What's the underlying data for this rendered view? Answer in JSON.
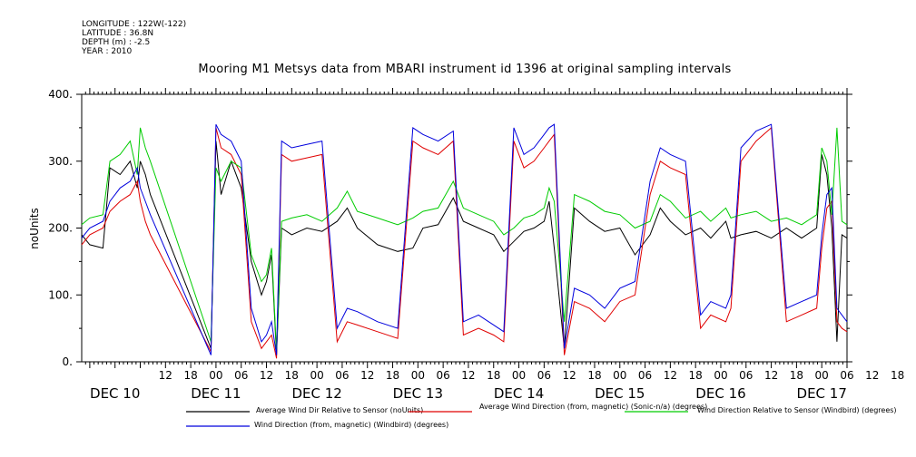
{
  "header": {
    "lines": [
      "LONGITUDE : 122W(-122)",
      "LATITUDE : 36.8N",
      "DEPTH (m) : -2.5",
      "YEAR : 2010"
    ]
  },
  "chart_data": {
    "type": "line",
    "title": "Mooring M1 Metsys data from MBARI instrument id 1396 at original sampling intervals",
    "ylabel": "noUnits",
    "xlabel": "",
    "ylim": [
      0,
      400
    ],
    "xlim": [
      -0.33,
      7.25
    ],
    "grid": false,
    "y_ticks": [
      "0.",
      "100.",
      "200.",
      "300.",
      "400."
    ],
    "hour_ticks": [
      "12",
      "18",
      "00",
      "06",
      "12",
      "18",
      "00",
      "06",
      "12",
      "18",
      "00",
      "06",
      "12",
      "18",
      "00",
      "06",
      "12",
      "18",
      "00",
      "06",
      "12",
      "18",
      "00",
      "06",
      "12",
      "18",
      "00",
      "06",
      "12",
      "18",
      "00",
      "06"
    ],
    "day_labels": [
      "DEC 10",
      "DEC 11",
      "DEC 12",
      "DEC 13",
      "DEC 14",
      "DEC 15",
      "DEC 16",
      "DEC 17"
    ],
    "x_unit_note": "days after 2010-12-10 00:00",
    "series": [
      {
        "name": "Average Wind Dir Relative to Sensor (noUnits)",
        "color": "#000000",
        "points": [
          [
            -0.33,
            190
          ],
          [
            -0.25,
            175
          ],
          [
            -0.12,
            170
          ],
          [
            -0.05,
            290
          ],
          [
            0.05,
            280
          ],
          [
            0.15,
            300
          ],
          [
            0.22,
            260
          ],
          [
            0.25,
            300
          ],
          [
            0.3,
            280
          ],
          [
            0.35,
            250
          ],
          [
            0.95,
            20
          ],
          [
            1.0,
            330
          ],
          [
            1.05,
            250
          ],
          [
            1.15,
            300
          ],
          [
            1.25,
            260
          ],
          [
            1.35,
            150
          ],
          [
            1.45,
            100
          ],
          [
            1.5,
            120
          ],
          [
            1.55,
            160
          ],
          [
            1.6,
            10
          ],
          [
            1.65,
            200
          ],
          [
            1.75,
            190
          ],
          [
            1.9,
            200
          ],
          [
            2.05,
            195
          ],
          [
            2.2,
            210
          ],
          [
            2.3,
            230
          ],
          [
            2.4,
            200
          ],
          [
            2.6,
            175
          ],
          [
            2.8,
            165
          ],
          [
            2.95,
            170
          ],
          [
            3.05,
            200
          ],
          [
            3.2,
            205
          ],
          [
            3.35,
            245
          ],
          [
            3.45,
            210
          ],
          [
            3.6,
            200
          ],
          [
            3.75,
            190
          ],
          [
            3.85,
            165
          ],
          [
            3.95,
            180
          ],
          [
            4.05,
            195
          ],
          [
            4.15,
            200
          ],
          [
            4.25,
            210
          ],
          [
            4.3,
            240
          ],
          [
            4.35,
            170
          ],
          [
            4.45,
            20
          ],
          [
            4.55,
            230
          ],
          [
            4.7,
            210
          ],
          [
            4.85,
            195
          ],
          [
            5.0,
            200
          ],
          [
            5.15,
            160
          ],
          [
            5.3,
            190
          ],
          [
            5.4,
            230
          ],
          [
            5.5,
            210
          ],
          [
            5.65,
            190
          ],
          [
            5.8,
            200
          ],
          [
            5.9,
            185
          ],
          [
            6.05,
            210
          ],
          [
            6.1,
            185
          ],
          [
            6.2,
            190
          ],
          [
            6.35,
            195
          ],
          [
            6.5,
            185
          ],
          [
            6.65,
            200
          ],
          [
            6.8,
            185
          ],
          [
            6.95,
            200
          ],
          [
            7.0,
            310
          ],
          [
            7.05,
            280
          ],
          [
            7.1,
            200
          ],
          [
            7.15,
            30
          ],
          [
            7.2,
            190
          ],
          [
            7.25,
            185
          ]
        ]
      },
      {
        "name": "Average Wind Direction (from, magnetic) (Sonic-n/a) (degrees)",
        "color": "#e00000",
        "points": [
          [
            -0.33,
            175
          ],
          [
            -0.25,
            190
          ],
          [
            -0.12,
            200
          ],
          [
            -0.05,
            225
          ],
          [
            0.05,
            240
          ],
          [
            0.15,
            250
          ],
          [
            0.22,
            270
          ],
          [
            0.25,
            240
          ],
          [
            0.3,
            210
          ],
          [
            0.35,
            190
          ],
          [
            0.95,
            15
          ],
          [
            1.0,
            350
          ],
          [
            1.05,
            320
          ],
          [
            1.15,
            310
          ],
          [
            1.25,
            280
          ],
          [
            1.35,
            60
          ],
          [
            1.45,
            20
          ],
          [
            1.5,
            30
          ],
          [
            1.55,
            40
          ],
          [
            1.6,
            5
          ],
          [
            1.65,
            310
          ],
          [
            1.75,
            300
          ],
          [
            1.9,
            305
          ],
          [
            2.05,
            310
          ],
          [
            2.2,
            30
          ],
          [
            2.3,
            60
          ],
          [
            2.4,
            55
          ],
          [
            2.6,
            45
          ],
          [
            2.8,
            35
          ],
          [
            2.95,
            330
          ],
          [
            3.05,
            320
          ],
          [
            3.2,
            310
          ],
          [
            3.35,
            330
          ],
          [
            3.45,
            40
          ],
          [
            3.6,
            50
          ],
          [
            3.75,
            40
          ],
          [
            3.85,
            30
          ],
          [
            3.95,
            330
          ],
          [
            4.05,
            290
          ],
          [
            4.15,
            300
          ],
          [
            4.25,
            320
          ],
          [
            4.3,
            330
          ],
          [
            4.35,
            340
          ],
          [
            4.45,
            10
          ],
          [
            4.55,
            90
          ],
          [
            4.7,
            80
          ],
          [
            4.85,
            60
          ],
          [
            5.0,
            90
          ],
          [
            5.15,
            100
          ],
          [
            5.3,
            250
          ],
          [
            5.4,
            300
          ],
          [
            5.5,
            290
          ],
          [
            5.65,
            280
          ],
          [
            5.8,
            50
          ],
          [
            5.9,
            70
          ],
          [
            6.05,
            60
          ],
          [
            6.1,
            80
          ],
          [
            6.2,
            300
          ],
          [
            6.35,
            330
          ],
          [
            6.5,
            350
          ],
          [
            6.65,
            60
          ],
          [
            6.8,
            70
          ],
          [
            6.95,
            80
          ],
          [
            7.0,
            170
          ],
          [
            7.05,
            230
          ],
          [
            7.1,
            240
          ],
          [
            7.15,
            60
          ],
          [
            7.2,
            50
          ],
          [
            7.25,
            45
          ]
        ]
      },
      {
        "name": "Wind Direction Relative to Sensor (Windbird) (degrees)",
        "color": "#00cc00",
        "points": [
          [
            -0.33,
            205
          ],
          [
            -0.25,
            215
          ],
          [
            -0.12,
            220
          ],
          [
            -0.05,
            300
          ],
          [
            0.05,
            310
          ],
          [
            0.15,
            330
          ],
          [
            0.22,
            280
          ],
          [
            0.25,
            350
          ],
          [
            0.3,
            320
          ],
          [
            0.35,
            300
          ],
          [
            0.95,
            30
          ],
          [
            1.0,
            290
          ],
          [
            1.05,
            270
          ],
          [
            1.15,
            300
          ],
          [
            1.25,
            290
          ],
          [
            1.35,
            160
          ],
          [
            1.45,
            120
          ],
          [
            1.5,
            130
          ],
          [
            1.55,
            170
          ],
          [
            1.6,
            15
          ],
          [
            1.65,
            210
          ],
          [
            1.75,
            215
          ],
          [
            1.9,
            220
          ],
          [
            2.05,
            210
          ],
          [
            2.2,
            230
          ],
          [
            2.3,
            255
          ],
          [
            2.4,
            225
          ],
          [
            2.6,
            215
          ],
          [
            2.8,
            205
          ],
          [
            2.95,
            215
          ],
          [
            3.05,
            225
          ],
          [
            3.2,
            230
          ],
          [
            3.35,
            270
          ],
          [
            3.45,
            230
          ],
          [
            3.6,
            220
          ],
          [
            3.75,
            210
          ],
          [
            3.85,
            190
          ],
          [
            3.95,
            200
          ],
          [
            4.05,
            215
          ],
          [
            4.15,
            220
          ],
          [
            4.25,
            230
          ],
          [
            4.3,
            260
          ],
          [
            4.35,
            240
          ],
          [
            4.45,
            60
          ],
          [
            4.55,
            250
          ],
          [
            4.7,
            240
          ],
          [
            4.85,
            225
          ],
          [
            5.0,
            220
          ],
          [
            5.15,
            200
          ],
          [
            5.3,
            210
          ],
          [
            5.4,
            250
          ],
          [
            5.5,
            240
          ],
          [
            5.65,
            215
          ],
          [
            5.8,
            225
          ],
          [
            5.9,
            210
          ],
          [
            6.05,
            230
          ],
          [
            6.1,
            215
          ],
          [
            6.2,
            220
          ],
          [
            6.35,
            225
          ],
          [
            6.5,
            210
          ],
          [
            6.65,
            215
          ],
          [
            6.8,
            205
          ],
          [
            6.95,
            220
          ],
          [
            7.0,
            320
          ],
          [
            7.05,
            300
          ],
          [
            7.1,
            220
          ],
          [
            7.15,
            350
          ],
          [
            7.2,
            210
          ],
          [
            7.25,
            205
          ]
        ]
      },
      {
        "name": "Wind Direction (from, magnetic) (Windbird) (degrees)",
        "color": "#0000dd",
        "points": [
          [
            -0.33,
            185
          ],
          [
            -0.25,
            200
          ],
          [
            -0.12,
            210
          ],
          [
            -0.05,
            240
          ],
          [
            0.05,
            260
          ],
          [
            0.15,
            270
          ],
          [
            0.22,
            290
          ],
          [
            0.25,
            260
          ],
          [
            0.3,
            240
          ],
          [
            0.35,
            220
          ],
          [
            0.95,
            10
          ],
          [
            1.0,
            355
          ],
          [
            1.05,
            340
          ],
          [
            1.15,
            330
          ],
          [
            1.25,
            300
          ],
          [
            1.35,
            80
          ],
          [
            1.45,
            30
          ],
          [
            1.5,
            40
          ],
          [
            1.55,
            60
          ],
          [
            1.6,
            10
          ],
          [
            1.65,
            330
          ],
          [
            1.75,
            320
          ],
          [
            1.9,
            325
          ],
          [
            2.05,
            330
          ],
          [
            2.2,
            50
          ],
          [
            2.3,
            80
          ],
          [
            2.4,
            75
          ],
          [
            2.6,
            60
          ],
          [
            2.8,
            50
          ],
          [
            2.95,
            350
          ],
          [
            3.05,
            340
          ],
          [
            3.2,
            330
          ],
          [
            3.35,
            345
          ],
          [
            3.45,
            60
          ],
          [
            3.6,
            70
          ],
          [
            3.75,
            55
          ],
          [
            3.85,
            45
          ],
          [
            3.95,
            350
          ],
          [
            4.05,
            310
          ],
          [
            4.15,
            320
          ],
          [
            4.25,
            340
          ],
          [
            4.3,
            350
          ],
          [
            4.35,
            355
          ],
          [
            4.45,
            20
          ],
          [
            4.55,
            110
          ],
          [
            4.7,
            100
          ],
          [
            4.85,
            80
          ],
          [
            5.0,
            110
          ],
          [
            5.15,
            120
          ],
          [
            5.3,
            270
          ],
          [
            5.4,
            320
          ],
          [
            5.5,
            310
          ],
          [
            5.65,
            300
          ],
          [
            5.8,
            70
          ],
          [
            5.9,
            90
          ],
          [
            6.05,
            80
          ],
          [
            6.1,
            100
          ],
          [
            6.2,
            320
          ],
          [
            6.35,
            345
          ],
          [
            6.5,
            355
          ],
          [
            6.65,
            80
          ],
          [
            6.8,
            90
          ],
          [
            6.95,
            100
          ],
          [
            7.0,
            190
          ],
          [
            7.05,
            250
          ],
          [
            7.1,
            260
          ],
          [
            7.15,
            80
          ],
          [
            7.2,
            70
          ],
          [
            7.25,
            60
          ]
        ]
      }
    ]
  },
  "legend": [
    {
      "text": "Average Wind Dir Relative to Sensor (noUnits)",
      "color": "#000000"
    },
    {
      "text": "Average Wind Direction (from, magnetic) (Sonic-n/a) (degrees)",
      "color": "#e00000"
    },
    {
      "text": "Wind Direction Relative to Sensor (Windbird) (degrees)",
      "color": "#00cc00"
    },
    {
      "text": "Wind Direction (from, magnetic) (Windbird) (degrees)",
      "color": "#0000dd"
    }
  ]
}
